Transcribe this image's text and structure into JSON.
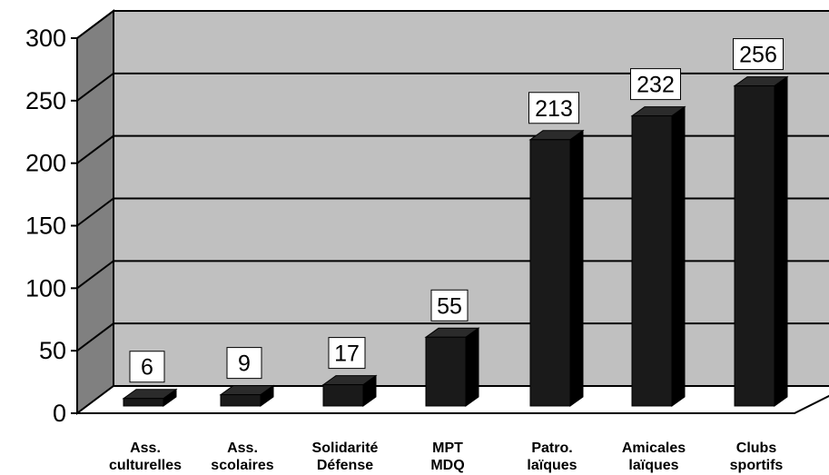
{
  "chart_data": {
    "type": "bar",
    "categories": [
      [
        "Ass.",
        "culturelles"
      ],
      [
        "Ass.",
        "scolaires"
      ],
      [
        "Solidarité",
        "Défense"
      ],
      [
        "MPT",
        "MDQ"
      ],
      [
        "Patro.",
        "laïques"
      ],
      [
        "Amicales",
        "laïques"
      ],
      [
        "Clubs",
        "sportifs"
      ]
    ],
    "values": [
      6,
      9,
      17,
      55,
      213,
      232,
      256
    ],
    "ylim": [
      0,
      300
    ],
    "yticks": [
      0,
      50,
      100,
      150,
      200,
      250,
      300
    ],
    "grid": true,
    "legend": "none",
    "style": "3d-column",
    "colors": {
      "bar_front": "#1a1a1a",
      "bar_top": "#2b2b2b",
      "bar_side": "#000000",
      "back_wall": "#c0c0c0",
      "side_wall": "#808080",
      "floor": "#ffffff",
      "label_box": "#ffffff"
    }
  }
}
